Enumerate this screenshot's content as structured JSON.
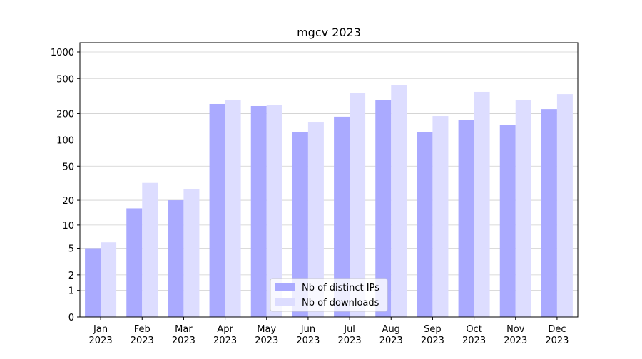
{
  "chart_data": {
    "type": "bar",
    "title": "mgcv 2023",
    "categories": [
      "Jan\n2023",
      "Feb\n2023",
      "Mar\n2023",
      "Apr\n2023",
      "May\n2023",
      "Jun\n2023",
      "Jul\n2023",
      "Aug\n2023",
      "Sep\n2023",
      "Oct\n2023",
      "Nov\n2023",
      "Dec\n2023"
    ],
    "series": [
      {
        "name": "Nb of distinct IPs",
        "color": "#aaaaff",
        "values": [
          5,
          16,
          20,
          257,
          243,
          124,
          184,
          282,
          122,
          170,
          149,
          225
        ]
      },
      {
        "name": "Nb of downloads",
        "color": "#ddddff",
        "values": [
          6,
          32,
          27,
          282,
          252,
          161,
          340,
          425,
          187,
          353,
          282,
          333
        ]
      }
    ],
    "yscale": "log1p",
    "ylim": [
      0,
      1273
    ],
    "yticks": [
      0,
      1,
      2,
      5,
      10,
      20,
      50,
      100,
      200,
      500,
      1000
    ],
    "grid": true,
    "legend": "lower center"
  }
}
